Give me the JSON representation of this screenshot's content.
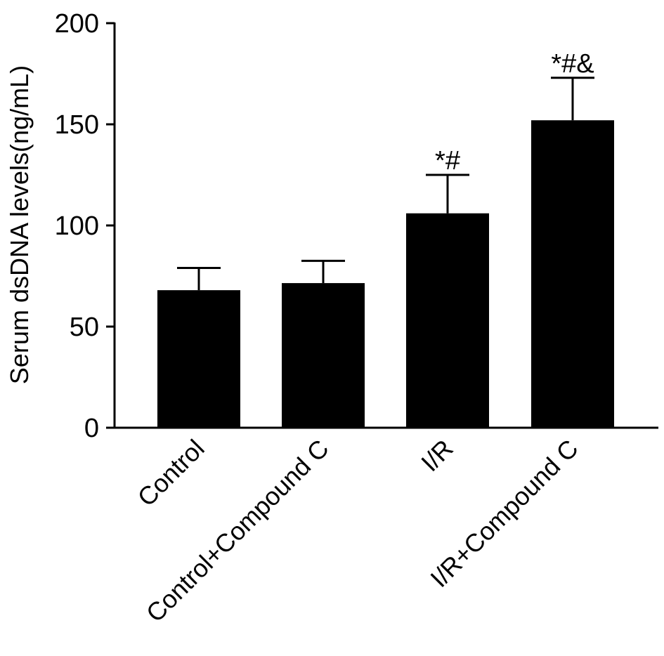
{
  "chart_data": {
    "type": "bar",
    "categories": [
      "Control",
      "Control+Compound C",
      "I/R",
      "I/R+Compound C"
    ],
    "values": [
      68,
      71.5,
      106,
      152
    ],
    "error_upper": [
      79,
      82.5,
      125,
      173
    ],
    "annotations": [
      "",
      "",
      "*#",
      "*#&"
    ],
    "ylabel": "Serum dsDNA levels(ng/mL)",
    "xlabel": "",
    "ylim": [
      0,
      200
    ],
    "yticks": [
      0,
      50,
      100,
      150,
      200
    ],
    "grid": false,
    "legend": "none",
    "colors": {
      "bar": "#000000",
      "axis": "#000000",
      "background": "#ffffff"
    }
  }
}
